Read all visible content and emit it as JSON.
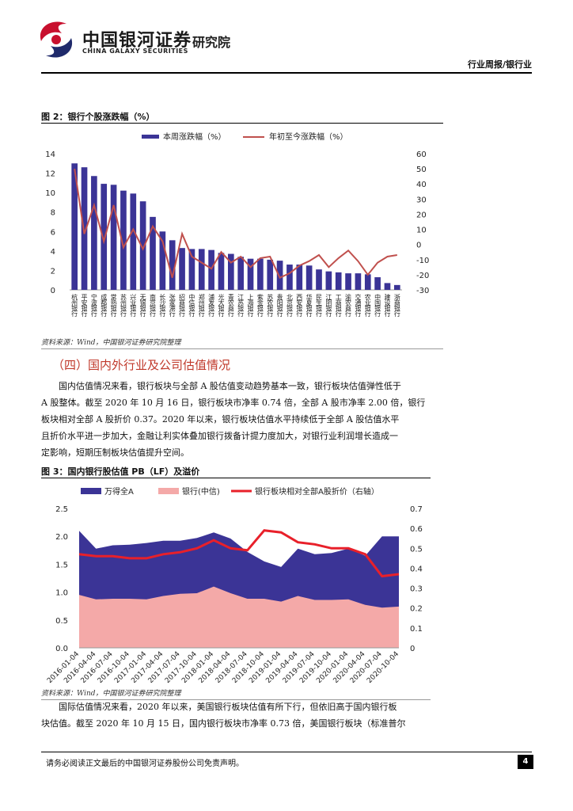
{
  "header": {
    "logo_cn": "中国银河证券",
    "logo_en": "CHINA GALAXY SECURITIES",
    "institute": "研究院",
    "category": "行业周报/银行业"
  },
  "figure2": {
    "title": "图 2：银行个股涨跌幅（%）",
    "source": "资料来源：Wind，中国银河证券研究院整理"
  },
  "section": {
    "title": "（四）国内外行业及公司估值情况"
  },
  "para1": {
    "line1": "国内估值情况来看，银行板块与全部 A 股估值变动趋势基本一致，银行板块估值弹性低于",
    "line2": "A 股整体。截至 2020 年 10 月 16 日，银行板块市净率 0.74 倍，全部 A 股市净率 2.00 倍，银行",
    "line3": "板块相对全部 A 股折价 0.37。2020 年以来，银行板块估值水平持续低于全部 A 股估值水平",
    "line4": "且折价水平进一步加大，金融让利实体叠加银行拨备计提力度加大，对银行业利润增长造成一",
    "line5": "定影响，短期压制板块估值提升空间。"
  },
  "figure3": {
    "title": "图 3：国内银行股估值 PB（LF）及溢价",
    "source": "资料来源：Wind，中国银河证券研究院整理"
  },
  "para2": {
    "line1": "国际估值情况来看，2020 年以来，美国银行板块估值有所下行，但依旧高于国内银行板",
    "line2": "块估值。截至 2020 年 10 月 15 日，国内银行板块市净率 0.73 倍，美国银行板块（标准普尔"
  },
  "footer": {
    "disclaimer": "请务必阅读正文最后的中国银河证券股份公司免责声明。",
    "page": "4"
  },
  "colors": {
    "navy": "#3b3496",
    "red": "#c0504d",
    "pink": "#f4a9a8",
    "brightred": "#e8202a"
  },
  "chart_data": [
    {
      "type": "bar",
      "title": "",
      "legend": [
        "本周涨跌幅（%）",
        "年初至今涨跌幅（%）"
      ],
      "categories": [
        "杭州银行",
        "平安银行",
        "宁波银行",
        "成都银行",
        "常熟银行",
        "苏州银行",
        "兴业银行",
        "无锡银行",
        "南京银行",
        "长沙银行",
        "张家港行",
        "招商银行",
        "中信银行",
        "郑州银行",
        "浦发银行",
        "光大银行",
        "青农商行",
        "江苏银行",
        "上海银行",
        "紫金银行",
        "苏农银行",
        "贵阳银行",
        "北京银行",
        "西安银行",
        "华夏银行",
        "民生银行",
        "江阴银行",
        "工商银行",
        "渝农商行",
        "交通银行",
        "农业银行",
        "中国银行",
        "建设银行",
        "浙商银行"
      ],
      "series": [
        {
          "name": "本周涨跌幅（%）",
          "axis": "left",
          "values": [
            13.0,
            12.6,
            11.7,
            10.9,
            10.8,
            10.2,
            9.9,
            9.1,
            7.5,
            6.0,
            5.1,
            4.3,
            4.2,
            4.2,
            4.1,
            3.8,
            3.7,
            3.4,
            3.2,
            3.2,
            3.1,
            3.0,
            2.6,
            2.6,
            2.5,
            2.1,
            1.9,
            1.8,
            1.7,
            1.7,
            1.6,
            1.3,
            0.7,
            0.5
          ]
        },
        {
          "name": "年初至今涨跌幅（%）",
          "axis": "right",
          "values": [
            50,
            7,
            26,
            2,
            26,
            -2,
            10,
            -3,
            12,
            2,
            -22,
            7,
            -8,
            -12,
            -16,
            -5,
            -12,
            -8,
            -15,
            -9,
            -8,
            -22,
            -19,
            -14,
            -11,
            -7,
            -15,
            -9,
            -4,
            -11,
            -20,
            -12,
            -8,
            -7
          ]
        }
      ],
      "ylim_left": [
        0,
        14
      ],
      "yticks_left": [
        0,
        2,
        4,
        6,
        8,
        10,
        12,
        14
      ],
      "ylim_right": [
        -30,
        60
      ],
      "yticks_right": [
        -30,
        -20,
        -10,
        0,
        10,
        20,
        30,
        40,
        50,
        60
      ]
    },
    {
      "type": "area",
      "title": "",
      "legend": [
        "万得全A",
        "银行(中信)",
        "银行板块相对全部A股折价（右轴）"
      ],
      "x": [
        "2016-01-04",
        "2016-04-04",
        "2016-07-04",
        "2016-10-04",
        "2017-01-04",
        "2017-04-04",
        "2017-07-04",
        "2017-10-04",
        "2018-01-04",
        "2018-04-04",
        "2018-07-04",
        "2018-10-04",
        "2019-01-04",
        "2019-04-04",
        "2019-07-04",
        "2019-10-04",
        "2020-01-04",
        "2020-04-04",
        "2020-07-04",
        "2020-10-04"
      ],
      "series": [
        {
          "name": "万得全A",
          "axis": "left",
          "values": [
            2.1,
            1.78,
            1.84,
            1.85,
            1.88,
            1.92,
            1.92,
            1.97,
            2.07,
            1.96,
            1.72,
            1.55,
            1.45,
            1.78,
            1.68,
            1.7,
            1.78,
            1.65,
            2.0,
            2.0
          ]
        },
        {
          "name": "银行(中信)",
          "axis": "left",
          "values": [
            0.95,
            0.87,
            0.88,
            0.88,
            0.87,
            0.93,
            0.97,
            0.98,
            1.1,
            0.98,
            0.88,
            0.88,
            0.83,
            0.93,
            0.86,
            0.86,
            0.87,
            0.77,
            0.72,
            0.74
          ]
        },
        {
          "name": "银行板块相对全部A股折价（右轴）",
          "axis": "right",
          "values": [
            0.47,
            0.46,
            0.46,
            0.45,
            0.45,
            0.47,
            0.48,
            0.5,
            0.54,
            0.5,
            0.49,
            0.59,
            0.58,
            0.53,
            0.52,
            0.5,
            0.5,
            0.47,
            0.36,
            0.37
          ]
        }
      ],
      "ylim_left": [
        0,
        2.5
      ],
      "yticks_left": [
        "0.0",
        "0.5",
        "1.0",
        "1.5",
        "2.0",
        "2.5"
      ],
      "ylim_right": [
        0,
        0.7
      ],
      "yticks_right": [
        "0",
        "0.1",
        "0.2",
        "0.3",
        "0.4",
        "0.5",
        "0.6",
        "0.7"
      ]
    }
  ]
}
